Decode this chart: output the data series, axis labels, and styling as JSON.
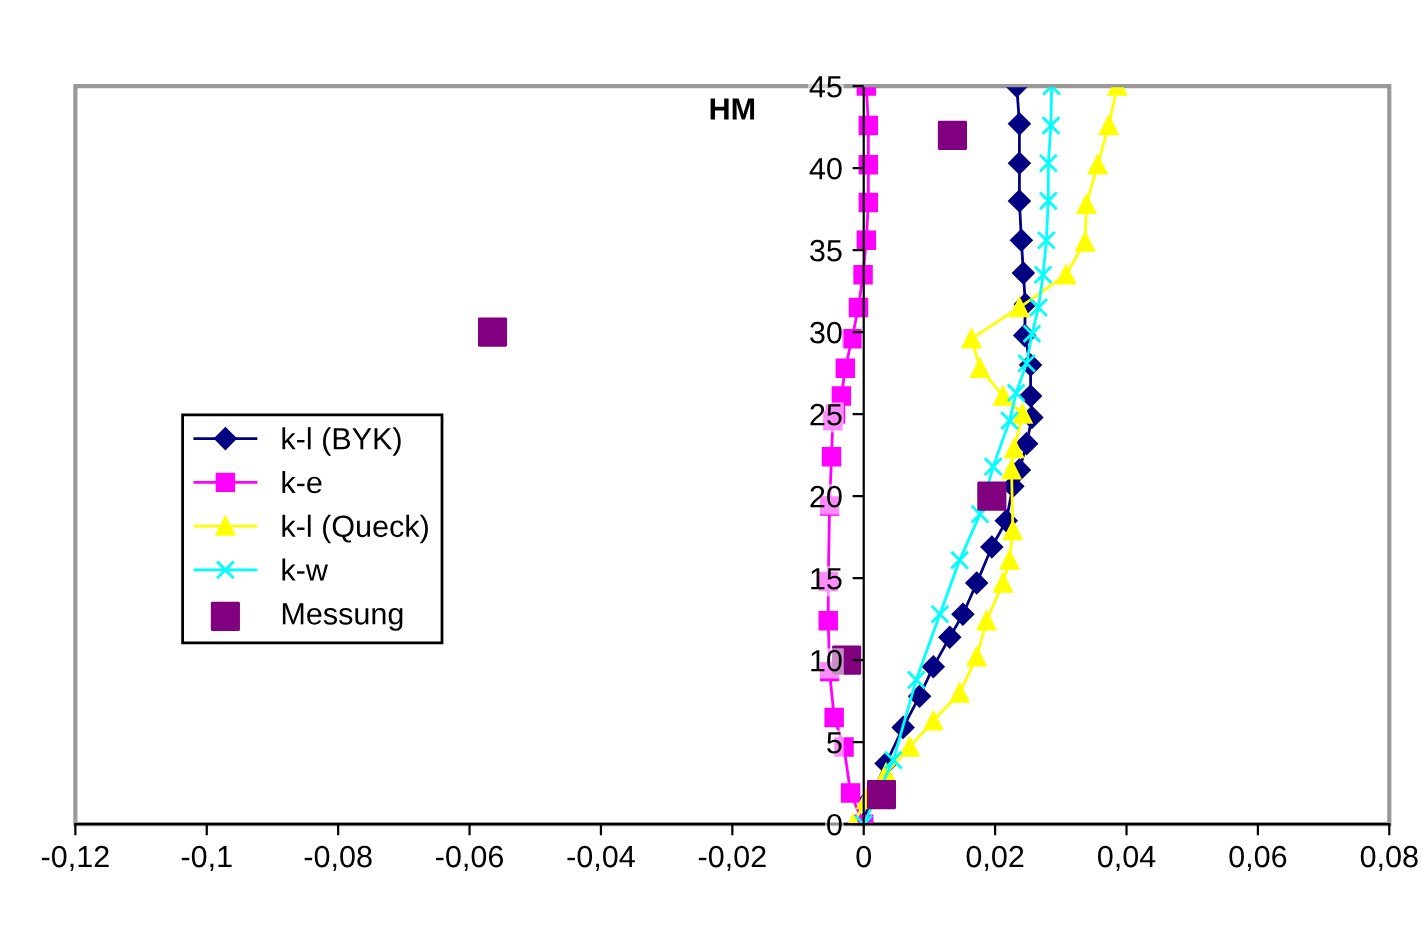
{
  "chart_data": {
    "type": "line",
    "title": "HM",
    "xlim": [
      -0.12,
      0.08
    ],
    "ylim": [
      0,
      45
    ],
    "xticks": [
      {
        "value": -0.12,
        "label": "-0,12"
      },
      {
        "value": -0.1,
        "label": "-0,1"
      },
      {
        "value": -0.08,
        "label": "-0,08"
      },
      {
        "value": -0.06,
        "label": "-0,06"
      },
      {
        "value": -0.04,
        "label": "-0,04"
      },
      {
        "value": -0.02,
        "label": "-0,02"
      },
      0,
      {
        "value": 0.02,
        "label": "0,02"
      },
      {
        "value": 0.04,
        "label": "0,04"
      },
      {
        "value": 0.06,
        "label": "0,06"
      },
      {
        "value": 0.08,
        "label": "0,08"
      }
    ],
    "yticks": [
      0,
      5,
      10,
      15,
      20,
      25,
      30,
      35,
      40,
      45
    ],
    "grid": false,
    "legend": "left",
    "series": [
      {
        "name": "k-l (BYK)",
        "color": "#000080",
        "marker": "diamond",
        "x": [
          0,
          0.0009,
          0.0034,
          0.006,
          0.0085,
          0.0106,
          0.0131,
          0.0151,
          0.0172,
          0.0195,
          0.0217,
          0.0227,
          0.0237,
          0.0248,
          0.0256,
          0.0254,
          0.0254,
          0.0245,
          0.0246,
          0.0243,
          0.024,
          0.0237,
          0.0237,
          0.0237,
          0.0233
        ],
        "values": [
          0,
          1.5,
          3.7,
          5.9,
          7.8,
          9.6,
          11.4,
          12.8,
          14.7,
          16.9,
          18.5,
          20.6,
          21.6,
          23.2,
          24.8,
          26.1,
          28,
          29.8,
          31.7,
          33.6,
          35.6,
          38,
          40.3,
          42.7,
          45
        ]
      },
      {
        "name": "k-e",
        "color": "#ff00ff",
        "marker": "square",
        "x": [
          0,
          -0.002,
          -0.003,
          -0.0045,
          -0.0052,
          -0.0054,
          -0.0054,
          -0.0052,
          -0.0049,
          -0.0047,
          -0.0043,
          -0.0034,
          -0.0028,
          -0.0018,
          -0.0008,
          -0.0001,
          0.0004,
          0.0007,
          0.0007,
          0.0007,
          0.0004
        ],
        "values": [
          0,
          1.9,
          4.7,
          6.5,
          9.3,
          12.4,
          14.8,
          19.4,
          22.4,
          24.6,
          25,
          26.1,
          27.8,
          29.6,
          31.5,
          33.5,
          35.6,
          37.9,
          40.2,
          42.6,
          45
        ]
      },
      {
        "name": "k-l (Queck)",
        "color": "#ffff00",
        "marker": "triangle",
        "x": [
          -0.0016,
          0.0004,
          0.0034,
          0.007,
          0.0106,
          0.0146,
          0.0172,
          0.0187,
          0.0212,
          0.0222,
          0.0227,
          0.0225,
          0.0229,
          0.0242,
          0.0212,
          0.0177,
          0.0164,
          0.0237,
          0.0308,
          0.0337,
          0.0339,
          0.0356,
          0.0373,
          0.0386
        ],
        "values": [
          0,
          1.5,
          3.1,
          4.7,
          6.3,
          8,
          10.2,
          12.4,
          14.7,
          16.1,
          17.9,
          21.6,
          22.9,
          25,
          26.1,
          27.8,
          29.6,
          31.5,
          33.5,
          35.5,
          37.8,
          40.2,
          42.6,
          45
        ]
      },
      {
        "name": "k-w",
        "color": "#00ffff",
        "marker": "cross",
        "x": [
          0,
          0.0045,
          0.008,
          0.0116,
          0.0146,
          0.0177,
          0.0197,
          0.0222,
          0.0232,
          0.0248,
          0.0256,
          0.0266,
          0.0273,
          0.0278,
          0.0281,
          0.0281,
          0.0285,
          0.0286
        ],
        "values": [
          0,
          3.9,
          8.8,
          12.8,
          16.1,
          18.9,
          21.8,
          24.6,
          26.3,
          28.1,
          29.9,
          31.5,
          33.5,
          35.6,
          38,
          40.3,
          42.6,
          45
        ]
      },
      {
        "name": "Messung",
        "type": "scatter",
        "color": "#800080",
        "marker": "square",
        "x": [
          0.0135,
          -0.0565,
          0.0195,
          -0.0026,
          0.0027
        ],
        "values": [
          42,
          30,
          20,
          10,
          1.8
        ]
      }
    ]
  }
}
